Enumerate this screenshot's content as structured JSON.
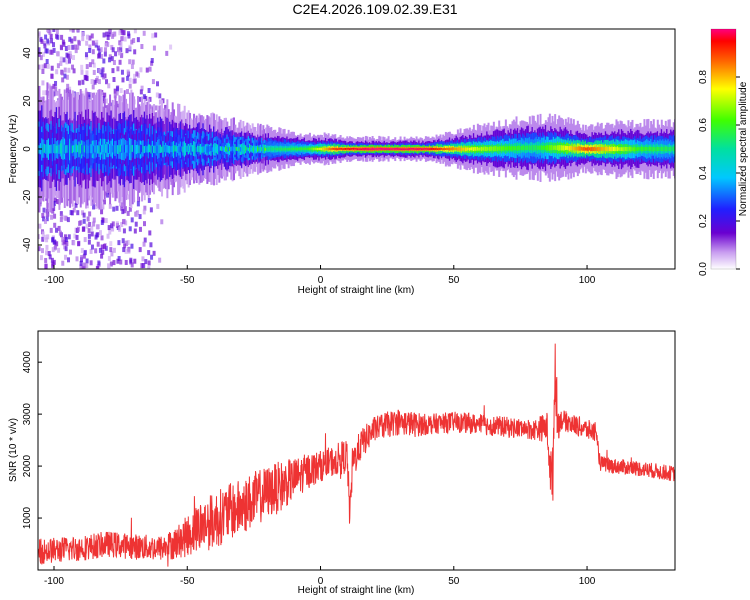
{
  "title": "C2E4.2026.109.02.39.E31",
  "chart_data": [
    {
      "type": "heatmap",
      "xlabel": "Height of straight line (km)",
      "ylabel": "Frequency (Hz)",
      "xlim": [
        -106,
        133
      ],
      "ylim": [
        -50,
        50
      ],
      "x_ticks": [
        -100,
        -50,
        0,
        50,
        100
      ],
      "x_tick_labels": [
        "-100",
        "-50",
        "0",
        "50",
        "100"
      ],
      "y_ticks": [
        -40,
        -20,
        0,
        20,
        40
      ],
      "y_tick_labels": [
        "-40",
        "-20",
        "0",
        "20",
        "40"
      ],
      "ridge": {
        "x": [
          -106,
          -90,
          -70,
          -50,
          -30,
          -15,
          -5,
          5,
          10,
          20,
          40,
          60,
          80,
          90,
          100,
          110,
          120,
          133
        ],
        "freq": [
          0,
          0,
          0,
          0,
          0,
          0,
          0,
          0,
          0,
          0,
          0,
          0,
          0.5,
          0.5,
          0,
          0,
          0,
          0
        ],
        "amplitude": [
          0.35,
          0.4,
          0.35,
          0.4,
          0.45,
          0.55,
          0.6,
          0.9,
          0.95,
          1.0,
          0.98,
          0.7,
          0.55,
          0.7,
          0.9,
          0.75,
          0.6,
          0.55
        ],
        "halfwidth_hz": [
          8,
          7,
          7,
          5,
          3.5,
          2.5,
          2,
          2,
          1.5,
          1.5,
          1.5,
          3,
          4,
          4,
          3,
          3.5,
          3.5,
          3.5
        ]
      },
      "noise_scatter": {
        "x_range": [
          -106,
          -55
        ],
        "freq_range": [
          -50,
          50
        ],
        "amplitude_max": 0.15
      },
      "colorbar": {
        "label": "Normalized spectral amplitude",
        "range": [
          0,
          1
        ],
        "ticks": [
          0.0,
          0.2,
          0.4,
          0.6,
          0.8
        ],
        "tick_labels": [
          "0.0",
          "0.2",
          "0.4",
          "0.6",
          "0.8"
        ],
        "colormap": "rainbow"
      }
    },
    {
      "type": "line",
      "xlabel": "Height of straight line (km)",
      "ylabel": "SNR (10 * v/v)",
      "xlim": [
        -106,
        133
      ],
      "ylim": [
        0,
        4600
      ],
      "x_ticks": [
        -100,
        -50,
        0,
        50,
        100
      ],
      "x_tick_labels": [
        "-100",
        "-50",
        "0",
        "50",
        "100"
      ],
      "y_ticks": [
        1000,
        2000,
        3000,
        4000
      ],
      "y_tick_labels": [
        "1000",
        "2000",
        "3000",
        "4000"
      ],
      "color": "#ee3333",
      "series": [
        {
          "x": [
            -106,
            -100,
            -90,
            -80,
            -70,
            -60,
            -55,
            -50,
            -45,
            -40,
            -35,
            -30,
            -25,
            -20,
            -15,
            -10,
            -5,
            0,
            5,
            10,
            11,
            12,
            15,
            20,
            25,
            30,
            35,
            40,
            50,
            60,
            70,
            80,
            85,
            87,
            88,
            89,
            90,
            95,
            100,
            103,
            105,
            110,
            120,
            133
          ],
          "values": [
            350,
            380,
            420,
            500,
            450,
            420,
            500,
            650,
            850,
            950,
            1100,
            1200,
            1350,
            1500,
            1600,
            1750,
            1900,
            2000,
            2100,
            2200,
            1000,
            2050,
            2400,
            2700,
            2800,
            2850,
            2800,
            2800,
            2850,
            2800,
            2750,
            2700,
            2750,
            1500,
            4000,
            2800,
            2900,
            2800,
            2700,
            2650,
            2050,
            2000,
            1950,
            1850
          ],
          "noise_amplitude": [
            250,
            250,
            250,
            250,
            250,
            250,
            300,
            400,
            500,
            550,
            550,
            550,
            550,
            500,
            500,
            400,
            350,
            300,
            300,
            350,
            300,
            350,
            300,
            250,
            250,
            250,
            250,
            200,
            200,
            200,
            200,
            200,
            300,
            700,
            700,
            400,
            200,
            200,
            200,
            200,
            150,
            150,
            150,
            150
          ]
        }
      ]
    }
  ]
}
